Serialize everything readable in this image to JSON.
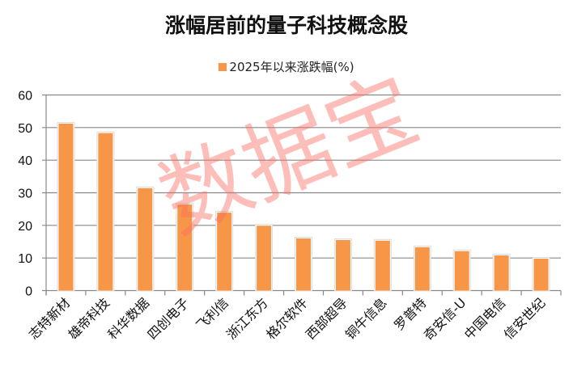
{
  "watermark": "数据宝",
  "chart_data": {
    "type": "bar",
    "title": "涨幅居前的量子科技概念股",
    "legend": [
      "2025年以来涨跌幅(%)"
    ],
    "legend_position": "top",
    "categories": [
      "志特新材",
      "雄帝科技",
      "科华数据",
      "四创电子",
      "飞利信",
      "浙江东方",
      "格尔软件",
      "西部超导",
      "铜牛信息",
      "罗普特",
      "奇安信-U",
      "中国电信",
      "信安世纪"
    ],
    "series": [
      {
        "name": "2025年以来涨跌幅(%)",
        "values": [
          51.2,
          48.3,
          31.4,
          26.4,
          23.9,
          19.9,
          16.0,
          15.5,
          15.3,
          13.3,
          12.1,
          10.8,
          9.8
        ],
        "color": "#F79646"
      }
    ],
    "yticks": [
      "0",
      "10",
      "20",
      "30",
      "40",
      "50",
      "60"
    ],
    "ylim": [
      0,
      60
    ],
    "grid": true,
    "xlabel": "",
    "ylabel": ""
  }
}
